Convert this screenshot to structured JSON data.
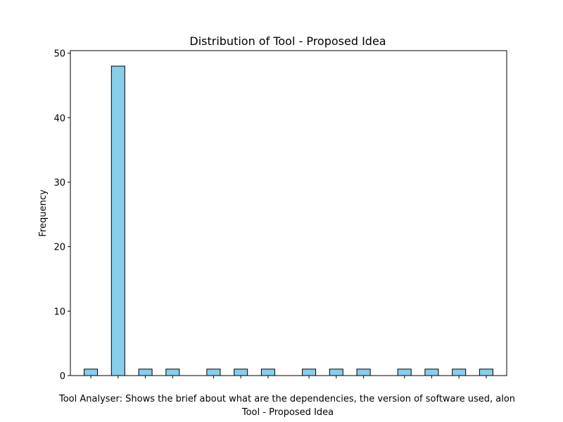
{
  "chart_data": {
    "type": "bar",
    "title": "Distribution of Tool - Proposed Idea",
    "xlabel": "Tool - Proposed Idea",
    "ylabel": "Frequency",
    "ylim": [
      0,
      50.4
    ],
    "yticks": [
      0,
      10,
      20,
      30,
      40,
      50
    ],
    "grid": false,
    "bar_color": "#87ceeb",
    "edge_color": "#000000",
    "overflow_label": "Tool Analyser: Shows the brief about what are the dependencies, the version of software used, alon",
    "bins": [
      {
        "x": 1,
        "value": 1
      },
      {
        "x": 2,
        "value": 48
      },
      {
        "x": 3,
        "value": 1
      },
      {
        "x": 4,
        "value": 1
      },
      {
        "x": 5.5,
        "value": 1
      },
      {
        "x": 6.5,
        "value": 1
      },
      {
        "x": 7.5,
        "value": 1
      },
      {
        "x": 9,
        "value": 1
      },
      {
        "x": 10,
        "value": 1
      },
      {
        "x": 11,
        "value": 1
      },
      {
        "x": 12.5,
        "value": 1
      },
      {
        "x": 13.5,
        "value": 1
      },
      {
        "x": 14.5,
        "value": 1
      },
      {
        "x": 15.5,
        "value": 1
      }
    ],
    "xlim": [
      0.25,
      16.25
    ]
  }
}
